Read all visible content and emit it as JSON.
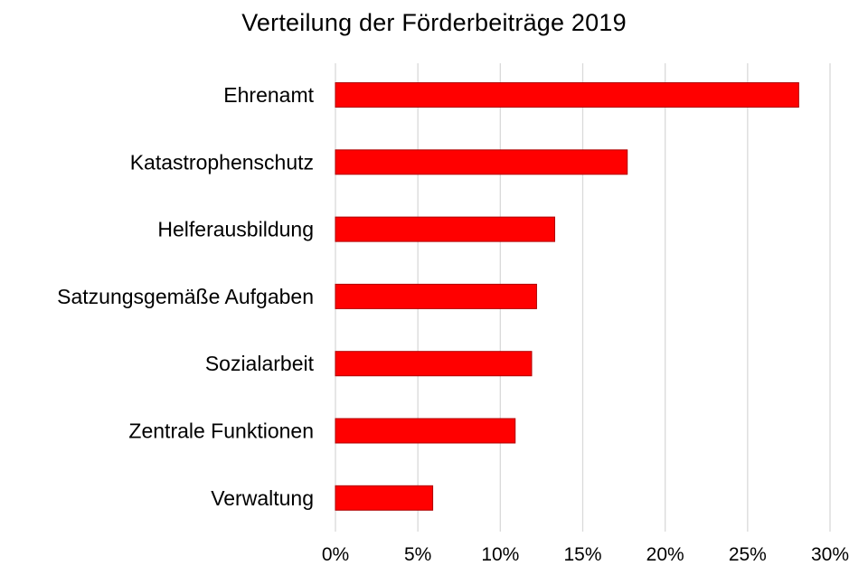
{
  "chart_data": {
    "type": "bar",
    "orientation": "horizontal",
    "title": "Verteilung der Förderbeiträge 2019",
    "categories": [
      "Ehrenamt",
      "Katastrophenschutz",
      "Helferausbildung",
      "Satzungsgemäße Aufgaben",
      "Sozialarbeit",
      "Zentrale Funktionen",
      "Verwaltung"
    ],
    "values": [
      28.1,
      17.7,
      13.3,
      12.2,
      11.9,
      10.9,
      5.9
    ],
    "value_unit": "%",
    "xlim": [
      0,
      30
    ],
    "x_ticks": [
      "0%",
      "5%",
      "10%",
      "15%",
      "20%",
      "25%",
      "30%"
    ],
    "x_tick_values": [
      0,
      5,
      10,
      15,
      20,
      25,
      30
    ],
    "xlabel": "",
    "ylabel": "",
    "grid": "vertical",
    "legend": "none",
    "bar_color": "#ff0000",
    "bar_border_color": "#b00000",
    "grid_color": "#d9d9d9"
  }
}
